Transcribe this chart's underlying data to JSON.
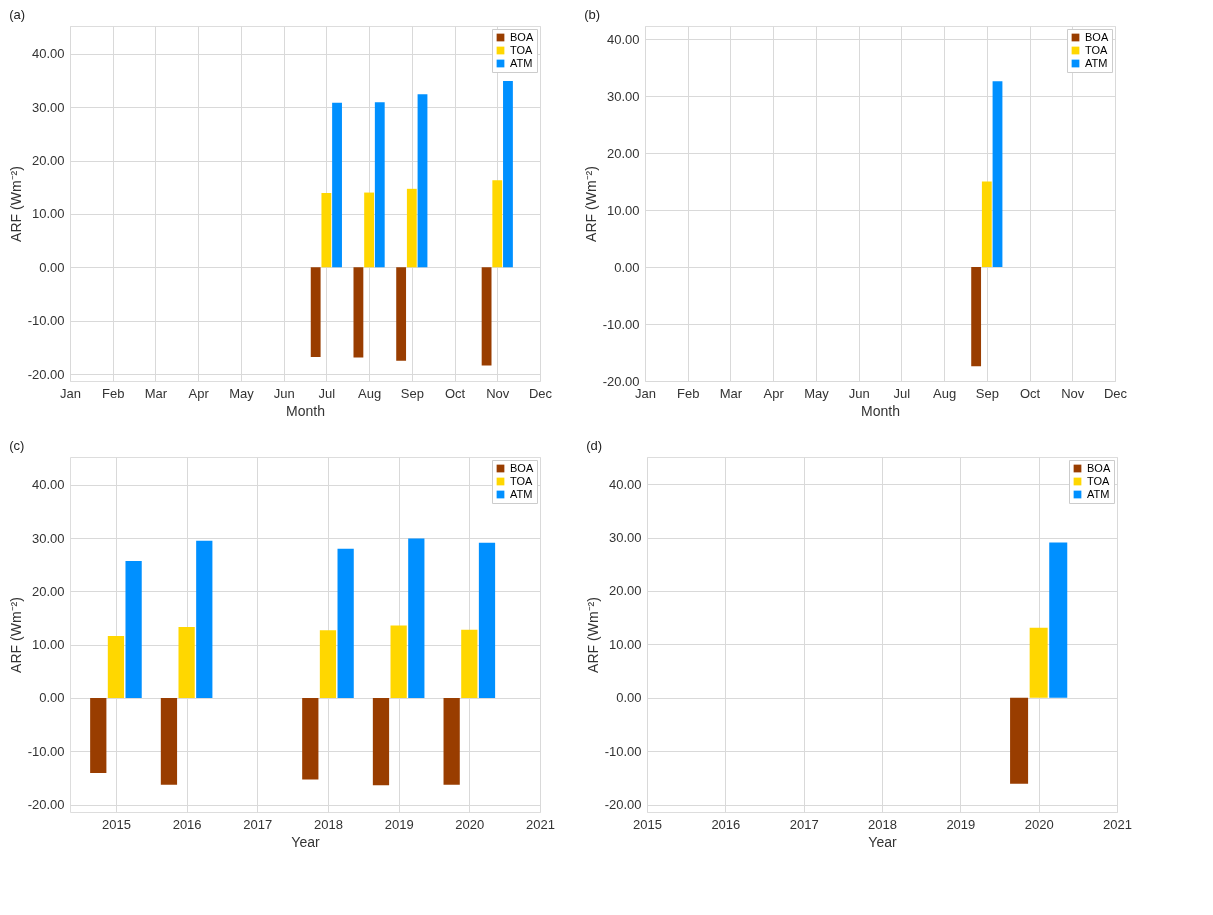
{
  "chart_data": [
    {
      "type": "bar",
      "title": "(a)",
      "xlabel": "Month",
      "ylabel": "ARF (Wm⁻²)",
      "categories": [
        "Jan",
        "Feb",
        "Mar",
        "Apr",
        "May",
        "Jun",
        "Jul",
        "Aug",
        "Sep",
        "Oct",
        "Nov",
        "Dec"
      ],
      "series": [
        {
          "name": "BOA",
          "color": "#993d00",
          "values": [
            null,
            null,
            null,
            null,
            null,
            null,
            -16.8,
            -16.9,
            -17.5,
            null,
            -18.4,
            null
          ]
        },
        {
          "name": "TOA",
          "color": "#ffd700",
          "values": [
            null,
            null,
            null,
            null,
            null,
            null,
            13.9,
            14.0,
            14.7,
            null,
            16.3,
            null
          ]
        },
        {
          "name": "ATM",
          "color": "#0090ff",
          "values": [
            null,
            null,
            null,
            null,
            null,
            null,
            30.8,
            30.9,
            32.4,
            null,
            34.9,
            null
          ]
        }
      ],
      "ylim": [
        -21.3,
        45.2
      ],
      "yticks": [
        {
          "value": -20,
          "label": "-20.00"
        },
        {
          "value": -10,
          "label": "-10.00"
        },
        {
          "value": 0,
          "label": "0.00"
        },
        {
          "value": 10,
          "label": "10.00"
        },
        {
          "value": 20,
          "label": "20.00"
        },
        {
          "value": 30,
          "label": "30.00"
        },
        {
          "value": 40,
          "label": "40.00"
        }
      ],
      "grid": true,
      "legend": "top right"
    },
    {
      "type": "bar",
      "title": "(b)",
      "xlabel": "Month",
      "ylabel": "ARF (Wm⁻²)",
      "categories": [
        "Jan",
        "Feb",
        "Mar",
        "Apr",
        "May",
        "Jun",
        "Jul",
        "Aug",
        "Sep",
        "Oct",
        "Nov",
        "Dec"
      ],
      "series": [
        {
          "name": "BOA",
          "color": "#993d00",
          "values": [
            null,
            null,
            null,
            null,
            null,
            null,
            null,
            null,
            -17.4,
            null,
            null,
            null
          ]
        },
        {
          "name": "TOA",
          "color": "#ffd700",
          "values": [
            null,
            null,
            null,
            null,
            null,
            null,
            null,
            null,
            15.0,
            null,
            null,
            null
          ]
        },
        {
          "name": "ATM",
          "color": "#0090ff",
          "values": [
            null,
            null,
            null,
            null,
            null,
            null,
            null,
            null,
            32.6,
            null,
            null,
            null
          ]
        }
      ],
      "ylim": [
        -20,
        42.3
      ],
      "yticks": [
        {
          "value": -20,
          "label": "-20.00"
        },
        {
          "value": -10,
          "label": "-10.00"
        },
        {
          "value": 0,
          "label": "0.00"
        },
        {
          "value": 10,
          "label": "10.00"
        },
        {
          "value": 20,
          "label": "20.00"
        },
        {
          "value": 30,
          "label": "30.00"
        },
        {
          "value": 40,
          "label": "40.00"
        }
      ],
      "grid": true,
      "legend": "top right"
    },
    {
      "type": "bar",
      "title": "(c)",
      "xlabel": "Year",
      "ylabel": "ARF (Wm⁻²)",
      "x": [
        2015,
        2016,
        2018,
        2019,
        2020
      ],
      "series": [
        {
          "name": "BOA",
          "color": "#993d00",
          "values": [
            -14.1,
            -16.3,
            -15.3,
            -16.4,
            -16.3
          ]
        },
        {
          "name": "TOA",
          "color": "#ffd700",
          "values": [
            11.6,
            13.3,
            12.7,
            13.6,
            12.8
          ]
        },
        {
          "name": "ATM",
          "color": "#0090ff",
          "values": [
            25.7,
            29.5,
            28.0,
            29.9,
            29.1
          ]
        }
      ],
      "xlim": [
        2014.35,
        2021
      ],
      "xticks": [
        2015,
        2016,
        2017,
        2018,
        2019,
        2020,
        2021
      ],
      "ylim": [
        -21.4,
        45.2
      ],
      "yticks": [
        {
          "value": -20,
          "label": "-20.00"
        },
        {
          "value": -10,
          "label": "-10.00"
        },
        {
          "value": 0,
          "label": "0.00"
        },
        {
          "value": 10,
          "label": "10.00"
        },
        {
          "value": 20,
          "label": "20.00"
        },
        {
          "value": 30,
          "label": "30.00"
        },
        {
          "value": 40,
          "label": "40.00"
        }
      ],
      "grid": true,
      "legend": "top right"
    },
    {
      "type": "bar",
      "title": "(d)",
      "xlabel": "Year",
      "ylabel": "ARF (Wm⁻²)",
      "x": [
        2020
      ],
      "series": [
        {
          "name": "BOA",
          "color": "#993d00",
          "values": [
            -16.1
          ]
        },
        {
          "name": "TOA",
          "color": "#ffd700",
          "values": [
            13.1
          ]
        },
        {
          "name": "ATM",
          "color": "#0090ff",
          "values": [
            29.1
          ]
        }
      ],
      "xlim": [
        2015,
        2021
      ],
      "xticks": [
        2015,
        2016,
        2017,
        2018,
        2019,
        2020,
        2021
      ],
      "ylim": [
        -21.4,
        45.1
      ],
      "yticks": [
        {
          "value": -20,
          "label": "-20.00"
        },
        {
          "value": -10,
          "label": "-10.00"
        },
        {
          "value": 0,
          "label": "0.00"
        },
        {
          "value": 10,
          "label": "10.00"
        },
        {
          "value": 20,
          "label": "20.00"
        },
        {
          "value": 30,
          "label": "30.00"
        },
        {
          "value": 40,
          "label": "40.00"
        }
      ],
      "grid": true,
      "legend": "top right"
    }
  ]
}
